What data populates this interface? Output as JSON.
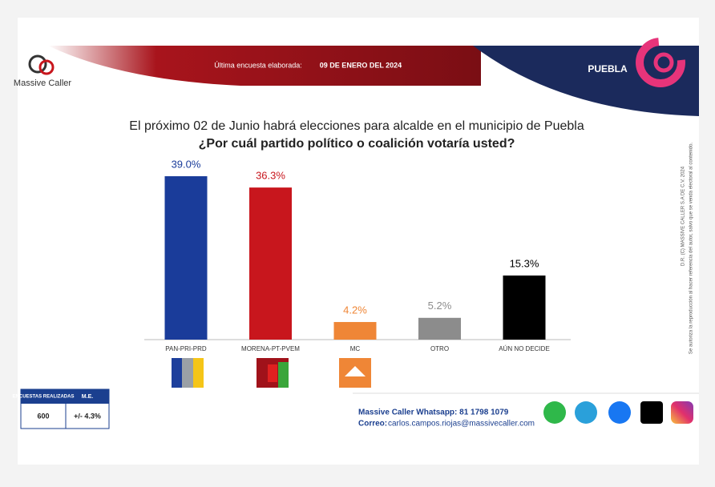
{
  "header": {
    "brand": "Massive Caller",
    "survey_label": "Última encuesta elaborada:",
    "survey_date": "09 DE ENERO DEL 2024",
    "region": "PUEBLA"
  },
  "chart_data": {
    "type": "bar",
    "title": "El próximo 02 de Junio habrá elecciones para alcalde en el municipio de Puebla",
    "subtitle": "¿Por cuál partido político o coalición votaría usted?",
    "categories": [
      "PAN-PRI-PRD",
      "MORENA-PT-PVEM",
      "MC",
      "OTRO",
      "AÚN NO DECIDE"
    ],
    "values": [
      39.0,
      36.3,
      4.2,
      5.2,
      15.3
    ],
    "value_labels": [
      "39.0%",
      "36.3%",
      "4.2%",
      "5.2%",
      "15.3%"
    ],
    "colors": [
      "#1a3c9a",
      "#c8161d",
      "#ef8636",
      "#8c8c8c",
      "#000000"
    ]
  },
  "stats_table": {
    "headers": [
      "ENCUESTAS REALIZADAS",
      "M.E."
    ],
    "row": [
      600,
      "+/- 4.3%"
    ]
  },
  "footer": {
    "whatsapp": "Massive Caller Whatsapp: 81 1798 1079",
    "email_label": "Correo:",
    "email": "carlos.campos.riojas@massivecaller.com"
  },
  "legal": [
    "D.R. (C) MASSIVE CALLER S.A DE C.V. 2024",
    "Se autoriza la reproducción al hacer referencia del autor, salvo que se venda electoral al contenido."
  ]
}
